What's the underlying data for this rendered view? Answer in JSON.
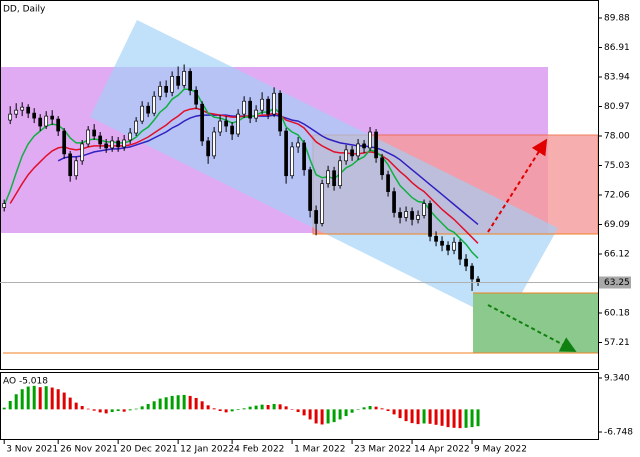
{
  "chart_data": {
    "type": "candlestick",
    "title": "DD, Daily",
    "open": [
      70.8,
      79.6,
      80.2,
      80.6,
      80.9,
      80.3,
      79.8,
      79.0,
      80.0,
      79.7,
      78.5,
      76.2,
      74.0,
      75.5,
      77.2,
      78.6,
      78.0,
      77.2,
      76.8,
      77.5,
      76.9,
      77.6,
      78.3,
      79.5,
      81.0,
      80.3,
      82.0,
      83.0,
      82.4,
      84.0,
      83.1,
      84.5,
      82.6,
      81.2,
      77.5,
      76.0,
      78.4,
      79.5,
      79.0,
      78.2,
      80.2,
      81.5,
      79.8,
      80.6,
      81.7,
      80.2,
      82.3,
      78.5,
      74.0,
      76.9,
      77.3,
      74.6,
      70.5,
      69.2,
      73.2,
      74.5,
      73.0,
      75.5,
      76.6,
      76.0,
      77.2,
      76.8,
      78.4,
      75.8,
      74.1,
      72.4,
      70.3,
      69.8,
      70.4,
      69.6,
      70.0,
      71.2,
      67.9,
      67.4,
      67.0,
      66.5,
      67.3,
      65.6,
      64.9,
      63.6
    ],
    "high": [
      71.6,
      81.0,
      81.3,
      81.4,
      81.2,
      80.8,
      80.2,
      80.5,
      80.6,
      80.0,
      78.8,
      76.5,
      75.9,
      77.6,
      79.0,
      79.2,
      78.4,
      77.7,
      78.0,
      77.9,
      78.1,
      78.8,
      79.9,
      81.5,
      81.4,
      82.5,
      83.5,
      83.6,
      84.5,
      85.0,
      85.2,
      84.8,
      83.0,
      81.5,
      77.9,
      78.9,
      80.1,
      80.0,
      79.4,
      80.7,
      82.0,
      81.9,
      81.1,
      82.4,
      82.0,
      82.9,
      82.6,
      78.8,
      77.4,
      77.9,
      77.6,
      74.9,
      71.0,
      73.6,
      75.0,
      74.9,
      76.0,
      77.1,
      77.0,
      77.7,
      77.6,
      78.9,
      78.7,
      76.2,
      74.5,
      72.8,
      70.8,
      70.9,
      70.8,
      70.5,
      71.6,
      71.5,
      68.4,
      67.9,
      67.4,
      67.8,
      67.6,
      66.1,
      65.2,
      63.9
    ],
    "low": [
      70.4,
      79.2,
      79.8,
      80.0,
      79.8,
      79.3,
      78.5,
      78.7,
      79.1,
      78.0,
      75.7,
      73.4,
      73.6,
      75.1,
      76.9,
      77.6,
      76.7,
      76.3,
      76.4,
      76.4,
      76.5,
      77.2,
      78.0,
      79.2,
      79.9,
      80.0,
      81.6,
      81.9,
      82.0,
      82.7,
      82.8,
      82.1,
      80.7,
      77.0,
      75.2,
      75.7,
      78.0,
      78.4,
      77.6,
      77.9,
      79.8,
      79.3,
      79.4,
      80.2,
      79.7,
      79.9,
      78.0,
      73.2,
      73.7,
      76.3,
      74.0,
      69.8,
      68.0,
      68.9,
      72.8,
      72.5,
      72.7,
      75.1,
      75.5,
      75.6,
      76.3,
      76.5,
      75.3,
      73.6,
      71.9,
      69.8,
      69.2,
      69.4,
      69.0,
      69.2,
      69.7,
      67.4,
      66.9,
      66.4,
      66.0,
      66.1,
      65.0,
      64.4,
      62.4,
      62.9
    ],
    "close": [
      71.2,
      80.2,
      80.6,
      80.9,
      80.3,
      79.8,
      79.0,
      80.0,
      79.7,
      78.5,
      76.2,
      74.0,
      75.5,
      77.2,
      78.6,
      78.0,
      77.2,
      76.8,
      77.5,
      76.9,
      77.6,
      78.3,
      79.5,
      81.0,
      80.3,
      82.0,
      83.0,
      82.4,
      84.0,
      83.1,
      84.5,
      82.6,
      81.2,
      77.5,
      76.0,
      78.4,
      79.5,
      79.0,
      78.2,
      80.2,
      81.5,
      79.8,
      80.6,
      81.7,
      80.2,
      82.3,
      78.5,
      74.0,
      76.9,
      77.3,
      74.6,
      70.5,
      69.2,
      73.2,
      74.5,
      73.0,
      75.5,
      76.6,
      76.0,
      77.2,
      76.8,
      78.4,
      75.8,
      74.1,
      72.4,
      70.3,
      69.8,
      70.4,
      69.6,
      70.0,
      71.2,
      67.9,
      67.4,
      67.0,
      66.5,
      67.3,
      65.6,
      64.9,
      63.6,
      63.25
    ],
    "lines": [
      {
        "color": "#3020c0",
        "values": [
          null,
          null,
          null,
          null,
          null,
          null,
          null,
          null,
          null,
          75.5,
          75.8,
          75.9,
          75.9,
          76.0,
          76.2,
          76.4,
          76.5,
          76.6,
          76.7,
          76.7,
          76.8,
          76.9,
          77.1,
          77.3,
          77.5,
          77.8,
          78.1,
          78.4,
          78.8,
          79.1,
          79.5,
          79.8,
          80.0,
          80.1,
          80.1,
          80.1,
          80.1,
          80.1,
          80.0,
          80.0,
          80.0,
          80.0,
          80.0,
          80.0,
          80.0,
          80.1,
          80.0,
          79.8,
          79.6,
          79.5,
          79.2,
          78.8,
          78.4,
          78.0,
          77.7,
          77.5,
          77.3,
          77.2,
          77.1,
          77.0,
          77.0,
          76.9,
          76.8,
          76.6,
          76.3,
          76.0,
          75.6,
          75.1,
          74.6,
          74.1,
          73.6,
          73.1,
          72.6,
          72.1,
          71.6,
          71.1,
          70.6,
          70.1,
          69.6,
          69.1
        ]
      },
      {
        "color": "#e0102a",
        "values": [
          null,
          71.2,
          72.2,
          73.2,
          74.1,
          74.8,
          75.4,
          76.0,
          76.5,
          76.8,
          76.9,
          76.7,
          76.6,
          76.7,
          76.9,
          77.0,
          77.0,
          77.0,
          77.0,
          77.0,
          77.0,
          77.1,
          77.3,
          77.6,
          77.9,
          78.3,
          78.7,
          79.1,
          79.6,
          80.0,
          80.5,
          80.7,
          80.8,
          80.6,
          80.3,
          80.2,
          80.1,
          80.0,
          79.9,
          79.9,
          80.0,
          80.0,
          80.0,
          80.1,
          80.1,
          80.3,
          80.1,
          79.6,
          79.4,
          79.2,
          78.8,
          78.1,
          77.4,
          77.0,
          76.7,
          76.4,
          76.3,
          76.3,
          76.2,
          76.2,
          76.3,
          76.4,
          76.3,
          76.0,
          75.6,
          75.0,
          74.4,
          73.9,
          73.3,
          72.8,
          72.4,
          71.8,
          71.2,
          70.6,
          70.1,
          69.6,
          69.0,
          68.4,
          67.8,
          67.2
        ]
      },
      {
        "color": "#10b040",
        "values": [
          71.0,
          72.5,
          74.3,
          76.0,
          77.2,
          78.0,
          78.5,
          79.0,
          79.2,
          79.1,
          78.6,
          77.8,
          77.3,
          77.3,
          77.6,
          77.7,
          77.6,
          77.4,
          77.4,
          77.3,
          77.3,
          77.5,
          77.9,
          78.5,
          78.9,
          79.6,
          80.4,
          80.9,
          81.7,
          82.1,
          82.7,
          82.7,
          82.4,
          81.3,
          80.3,
          79.9,
          79.8,
          79.6,
          79.3,
          79.5,
          79.9,
          79.9,
          80.1,
          80.4,
          80.4,
          80.8,
          80.3,
          78.9,
          78.4,
          78.1,
          77.3,
          75.6,
          74.1,
          73.8,
          73.9,
          73.7,
          74.2,
          74.8,
          75.1,
          75.6,
          75.9,
          76.6,
          76.4,
          75.9,
          75.1,
          74.0,
          73.0,
          72.4,
          71.8,
          71.4,
          71.3,
          70.5,
          69.8,
          69.2,
          68.6,
          68.3,
          67.7,
          67.1,
          66.3,
          65.7
        ]
      }
    ],
    "ylim": [
      54.44,
      91.59
    ],
    "yticks": [
      89.88,
      86.91,
      83.94,
      80.97,
      {
        "value": 78,
        "label": "78.00"
      },
      75.03,
      72.06,
      69.09,
      66.12,
      60.18,
      57.21
    ],
    "xlim": [
      -0.7,
      99
    ],
    "xticks": [
      {
        "value": 0,
        "label": "3 Nov 2021"
      },
      {
        "value": 9,
        "label": "26 Nov 2021"
      },
      {
        "value": 19,
        "label": "20 Dec 2021"
      },
      {
        "value": 29,
        "label": "12 Jan 2022"
      },
      {
        "value": 38,
        "label": "4 Feb 2022"
      },
      {
        "value": 48,
        "label": "1 Mar 2022"
      },
      {
        "value": 58,
        "label": "23 Mar 2022"
      },
      {
        "value": 68,
        "label": "14 Apr 2022"
      },
      {
        "value": 78,
        "label": "9 May 2022"
      }
    ],
    "indicator": {
      "type": "histogram",
      "title": "AO -5.018",
      "up_color": "#00a000",
      "down_color": "#e00000",
      "values": [
        0.5,
        2.5,
        4.5,
        6.0,
        6.8,
        7.0,
        6.6,
        6.9,
        6.5,
        6.0,
        5.0,
        3.5,
        2.0,
        1.0,
        0.2,
        -0.4,
        -0.9,
        -1.2,
        -0.8,
        -0.5,
        -0.7,
        -0.3,
        0.2,
        0.9,
        1.6,
        2.4,
        3.2,
        3.6,
        4.0,
        4.2,
        4.3,
        4.0,
        3.4,
        2.4,
        1.2,
        0.3,
        -0.5,
        -0.9,
        -0.6,
        -0.2,
        0.3,
        0.8,
        1.1,
        1.4,
        1.3,
        1.6,
        1.5,
        0.9,
        0.1,
        -0.8,
        -1.8,
        -3.0,
        -4.2,
        -4.5,
        -4.2,
        -3.8,
        -3.0,
        -2.0,
        -1.0,
        0.0,
        0.6,
        1.0,
        0.8,
        0.3,
        -0.5,
        -1.5,
        -2.6,
        -3.5,
        -4.1,
        -4.4,
        -4.2,
        -4.3,
        -4.6,
        -4.9,
        -5.3,
        -5.5,
        -5.6,
        -5.5,
        -5.3,
        -5.018
      ],
      "ylim": [
        -9.13,
        10.83
      ],
      "yticks": [
        {
          "value": 9.34,
          "label": "9.340"
        },
        -6.748
      ]
    }
  }
}
